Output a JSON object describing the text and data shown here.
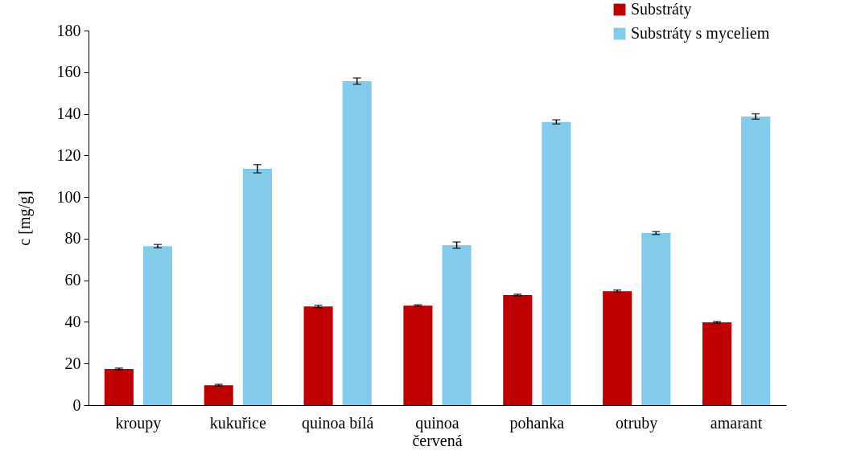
{
  "chart_data": {
    "type": "bar",
    "ylabel": "c [mg/g]",
    "categories": [
      "kroupy",
      "kukuřice",
      "quinoa bílá",
      "quinoa červená",
      "pohanka",
      "otruby",
      "amarant"
    ],
    "series": [
      {
        "name": "Substráty",
        "color": "#c00000",
        "values": [
          17.4,
          9.6,
          47.4,
          47.8,
          52.9,
          54.8,
          39.8
        ],
        "errors": [
          0.4,
          0.4,
          0.6,
          0.4,
          0.4,
          0.5,
          0.4
        ]
      },
      {
        "name": "Substráty s myceliem",
        "color": "#83cbeb",
        "values": [
          76.4,
          113.6,
          155.7,
          76.9,
          136.1,
          82.7,
          138.7
        ],
        "errors": [
          0.8,
          2.0,
          1.5,
          1.5,
          1.0,
          0.7,
          1.3
        ]
      }
    ],
    "ylim": [
      0,
      180
    ],
    "yticks": [
      0,
      20,
      40,
      60,
      80,
      100,
      120,
      140,
      160,
      180
    ],
    "grid": false,
    "legend": "top right"
  }
}
